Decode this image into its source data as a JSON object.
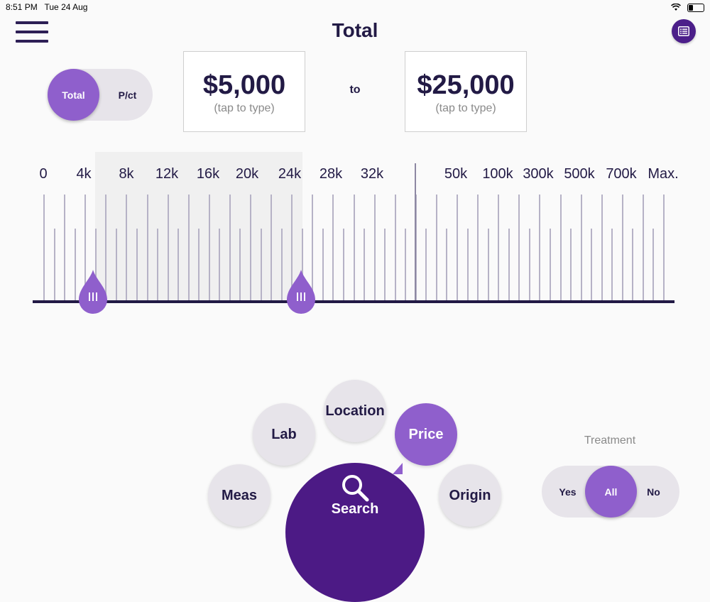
{
  "status_bar": {
    "time": "8:51 PM",
    "date": "Tue 24 Aug"
  },
  "header": {
    "title": "Total",
    "menu_icon": "hamburger-icon",
    "list_icon": "list-icon"
  },
  "price_mode": {
    "options": [
      "Total",
      "P/ct"
    ],
    "selected": "Total"
  },
  "price_range": {
    "min_value": "$5,000",
    "max_value": "$25,000",
    "hint": "(tap to type)",
    "separator": "to"
  },
  "slider": {
    "labels": [
      "0",
      "4k",
      "8k",
      "12k",
      "16k",
      "20k",
      "24k",
      "28k",
      "32k",
      "50k",
      "100k",
      "300k",
      "500k",
      "700k",
      "Max."
    ]
  },
  "filters": {
    "meas": "Meas",
    "lab": "Lab",
    "location": "Location",
    "price": "Price",
    "origin": "Origin",
    "active": "Price"
  },
  "search": {
    "label": "Search",
    "icon": "search-icon"
  },
  "treatment": {
    "label": "Treatment",
    "options": [
      "Yes",
      "All",
      "No"
    ],
    "selected": "All"
  },
  "colors": {
    "accent": "#8f5fcc",
    "dark_accent": "#4c1a85",
    "text": "#221a45"
  }
}
